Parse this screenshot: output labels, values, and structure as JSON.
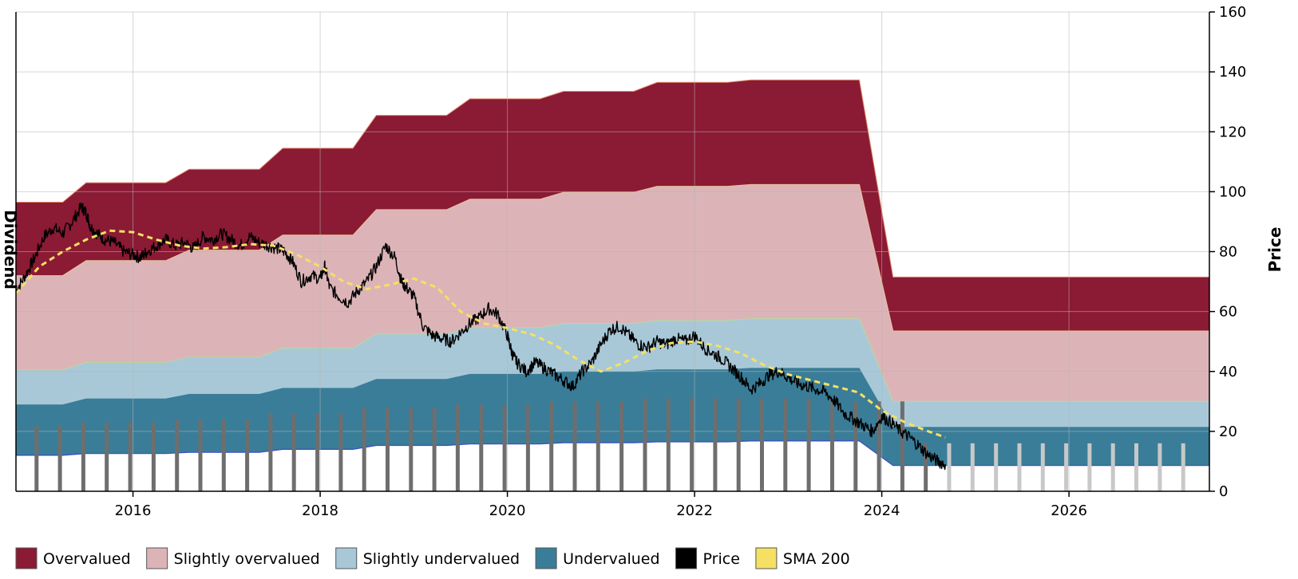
{
  "chart_data": {
    "type": "area",
    "title": "",
    "ylabel_right": "Price",
    "ylabel_left_partial": "Dividend",
    "x_domain": [
      2014.75,
      2027.5
    ],
    "ylim": [
      0,
      160
    ],
    "y_ticks": [
      0,
      20,
      40,
      60,
      80,
      100,
      120,
      140,
      160
    ],
    "x_ticks": [
      2016,
      2018,
      2020,
      2022,
      2024,
      2026
    ],
    "x_tick_labels": [
      "2016",
      "2018",
      "2020",
      "2022",
      "2024",
      "2026"
    ],
    "y_tick_labels": [
      "0",
      "20",
      "40",
      "60",
      "80",
      "100",
      "120",
      "140",
      "160"
    ],
    "grid": true,
    "legend_position": "bottom",
    "colors": {
      "overvalued": "#8b1a34",
      "slightly_overvalued": "#dcb4b7",
      "slightly_undervalued": "#a8c8d8",
      "undervalued": "#3a7d98",
      "price": "#000000",
      "sma": "#f5e063",
      "dividend_bar": "#6e6e6e",
      "dividend_bar_future": "#c8c8c8",
      "boundary_line": "#3a48c8"
    },
    "legend": [
      {
        "name": "Overvalued",
        "color": "#8b1a34"
      },
      {
        "name": "Slightly overvalued",
        "color": "#dcb4b7"
      },
      {
        "name": "Slightly undervalued",
        "color": "#a8c8d8"
      },
      {
        "name": "Undervalued",
        "color": "#3a7d98"
      },
      {
        "name": "Price",
        "color": "#000000"
      },
      {
        "name": "SMA 200",
        "color": "#f5e063"
      }
    ],
    "bands_x": [
      2014.75,
      2015.25,
      2015.5,
      2016.0,
      2016.35,
      2016.6,
      2017.0,
      2017.35,
      2017.6,
      2018.0,
      2018.35,
      2018.6,
      2019.0,
      2019.35,
      2019.6,
      2020.0,
      2020.35,
      2020.6,
      2021.0,
      2021.35,
      2021.6,
      2022.0,
      2022.35,
      2022.6,
      2023.0,
      2023.35,
      2023.76,
      2024.12,
      2027.5
    ],
    "bands": {
      "base": [
        12,
        12,
        12.6,
        12.6,
        12.6,
        13,
        13,
        13,
        14,
        14,
        14,
        15.3,
        15.3,
        15.3,
        15.8,
        15.8,
        15.8,
        16.2,
        16.2,
        16.2,
        16.5,
        16.5,
        16.5,
        16.8,
        16.8,
        16.8,
        16.8,
        8.6,
        8.6
      ],
      "under": [
        29,
        29,
        31,
        31,
        31,
        32.5,
        32.5,
        32.5,
        34.5,
        34.5,
        34.5,
        37.5,
        37.5,
        37.5,
        39.2,
        39.2,
        39.2,
        40,
        40,
        40,
        40.7,
        40.7,
        40.7,
        41.2,
        41.2,
        41.2,
        41.2,
        21.5,
        21.5
      ],
      "slunder": [
        40.5,
        40.5,
        43,
        43,
        43,
        44.8,
        44.8,
        44.8,
        47.8,
        47.8,
        47.8,
        52.5,
        52.5,
        52.5,
        54.6,
        54.6,
        54.6,
        56,
        56,
        56,
        57,
        57,
        57,
        57.6,
        57.6,
        57.6,
        57.6,
        30,
        30
      ],
      "slover": [
        72,
        72,
        77,
        77,
        77,
        80.5,
        80.5,
        80.5,
        85.5,
        85.5,
        85.5,
        94,
        94,
        94,
        97.5,
        97.5,
        97.5,
        99.8,
        99.8,
        99.8,
        101.8,
        101.8,
        101.8,
        102.4,
        102.4,
        102.4,
        102.4,
        53.5,
        53.5
      ],
      "over": [
        96.5,
        96.5,
        103,
        103,
        103,
        107.5,
        107.5,
        107.5,
        114.5,
        114.5,
        114.5,
        125.5,
        125.5,
        125.5,
        131,
        131,
        131,
        133.5,
        133.5,
        133.5,
        136.5,
        136.5,
        136.5,
        137.3,
        137.3,
        137.3,
        137.3,
        71.5,
        71.5
      ]
    },
    "price_series": {
      "x": [
        2014.75,
        2014.85,
        2014.95,
        2015.05,
        2015.15,
        2015.25,
        2015.35,
        2015.45,
        2015.5,
        2015.55,
        2015.62,
        2015.7,
        2015.8,
        2015.9,
        2016.0,
        2016.08,
        2016.15,
        2016.25,
        2016.35,
        2016.45,
        2016.55,
        2016.65,
        2016.75,
        2016.85,
        2016.95,
        2017.05,
        2017.15,
        2017.25,
        2017.35,
        2017.45,
        2017.55,
        2017.62,
        2017.7,
        2017.8,
        2017.9,
        2018.0,
        2018.05,
        2018.1,
        2018.2,
        2018.3,
        2018.4,
        2018.5,
        2018.6,
        2018.7,
        2018.8,
        2018.87,
        2018.92,
        2019.0,
        2019.1,
        2019.2,
        2019.3,
        2019.4,
        2019.5,
        2019.6,
        2019.7,
        2019.8,
        2019.9,
        2020.0,
        2020.05,
        2020.1,
        2020.2,
        2020.3,
        2020.4,
        2020.5,
        2020.6,
        2020.7,
        2020.8,
        2020.9,
        2021.0,
        2021.1,
        2021.2,
        2021.3,
        2021.4,
        2021.5,
        2021.6,
        2021.7,
        2021.8,
        2021.9,
        2022.0,
        2022.1,
        2022.2,
        2022.3,
        2022.4,
        2022.5,
        2022.6,
        2022.7,
        2022.8,
        2022.9,
        2023.0,
        2023.1,
        2023.2,
        2023.3,
        2023.4,
        2023.5,
        2023.6,
        2023.7,
        2023.8,
        2023.9,
        2024.0,
        2024.1,
        2024.2,
        2024.3,
        2024.4,
        2024.5,
        2024.6,
        2024.68
      ],
      "y": [
        67,
        72,
        78,
        85,
        88,
        86,
        90,
        95,
        93,
        88,
        86,
        84,
        83,
        80,
        79,
        78,
        80,
        82,
        84,
        82,
        83,
        81,
        85,
        84,
        86,
        84,
        82,
        85,
        83,
        82,
        81,
        80,
        77,
        70,
        72,
        71,
        75,
        68,
        65,
        63,
        67,
        70,
        75,
        82,
        78,
        70,
        68,
        65,
        55,
        52,
        51,
        50,
        53,
        56,
        58,
        61,
        59,
        52,
        46,
        43,
        40,
        43,
        41,
        39,
        37,
        35,
        40,
        43,
        49,
        54,
        55,
        52,
        49,
        48,
        50,
        49,
        51,
        50,
        52,
        48,
        46,
        44,
        41,
        38,
        34,
        36,
        39,
        40,
        38,
        36,
        35,
        34,
        33,
        30,
        26,
        24,
        22,
        20,
        25,
        23,
        20,
        18,
        15,
        12,
        10,
        9
      ]
    },
    "sma_series": {
      "x": [
        2014.75,
        2015.0,
        2015.25,
        2015.5,
        2015.75,
        2016.0,
        2016.25,
        2016.5,
        2016.75,
        2017.0,
        2017.25,
        2017.5,
        2017.75,
        2018.0,
        2018.25,
        2018.5,
        2018.75,
        2019.0,
        2019.25,
        2019.5,
        2019.75,
        2020.0,
        2020.25,
        2020.5,
        2020.75,
        2021.0,
        2021.25,
        2021.5,
        2021.75,
        2022.0,
        2022.25,
        2022.5,
        2022.75,
        2023.0,
        2023.25,
        2023.5,
        2023.75,
        2024.0,
        2024.25,
        2024.5,
        2024.68
      ],
      "y": [
        66,
        75,
        80,
        84,
        87,
        86.5,
        84,
        82,
        81,
        81.5,
        82.5,
        82,
        79,
        75,
        70,
        67.5,
        69,
        71,
        68,
        60,
        56,
        54.5,
        52.5,
        49,
        44,
        40,
        43,
        47,
        49.5,
        50,
        48.5,
        46,
        42,
        39,
        37,
        35,
        33,
        27,
        23,
        20,
        18
      ]
    },
    "dividend_x": [
      2014.97,
      2015.22,
      2015.47,
      2015.72,
      2015.97,
      2016.22,
      2016.47,
      2016.72,
      2016.97,
      2017.22,
      2017.47,
      2017.72,
      2017.97,
      2018.22,
      2018.47,
      2018.72,
      2018.97,
      2019.22,
      2019.47,
      2019.72,
      2019.97,
      2020.22,
      2020.47,
      2020.72,
      2020.97,
      2021.22,
      2021.47,
      2021.72,
      2021.97,
      2022.22,
      2022.47,
      2022.72,
      2022.97,
      2023.22,
      2023.47,
      2023.72,
      2023.97,
      2024.22,
      2024.47,
      2024.72,
      2024.97,
      2025.22,
      2025.47,
      2025.72,
      2025.97,
      2026.22,
      2026.47,
      2026.72,
      2026.97,
      2027.22
    ],
    "dividend_values": [
      0.22,
      0.22,
      0.23,
      0.23,
      0.23,
      0.23,
      0.24,
      0.24,
      0.24,
      0.24,
      0.26,
      0.26,
      0.26,
      0.26,
      0.28,
      0.28,
      0.28,
      0.28,
      0.29,
      0.29,
      0.29,
      0.29,
      0.3,
      0.3,
      0.3,
      0.3,
      0.31,
      0.31,
      0.31,
      0.31,
      0.31,
      0.31,
      0.31,
      0.31,
      0.3,
      0.3,
      0.3,
      0.3,
      0.16,
      0.16,
      0.16,
      0.16,
      0.16,
      0.16,
      0.16,
      0.16,
      0.16,
      0.16,
      0.16,
      0.16
    ],
    "dividend_forecast_from": 2024.6,
    "dividend_scale_max": 1.6
  }
}
